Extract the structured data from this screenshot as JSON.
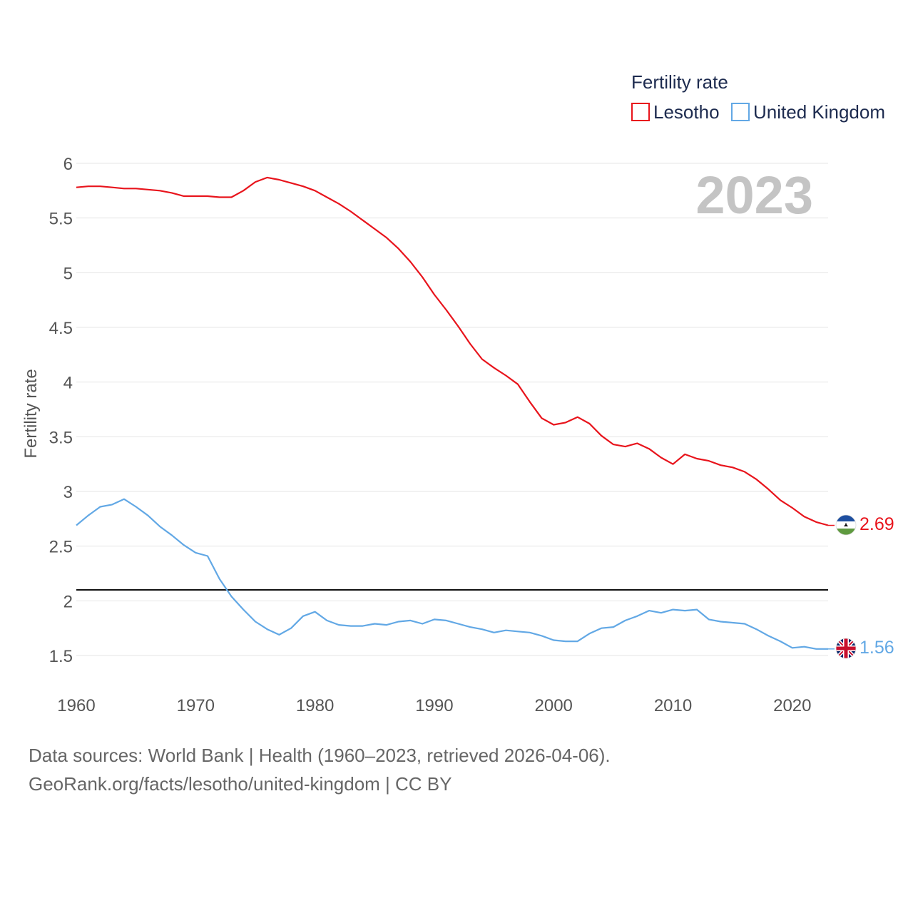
{
  "colors": {
    "lesotho": "#e8141c",
    "uk": "#62a8e5",
    "reference": "#111111",
    "grid": "#e5e5e5"
  },
  "legend": {
    "title": "Fertility rate",
    "items": [
      {
        "name": "Lesotho",
        "color": "#e8141c"
      },
      {
        "name": "United Kingdom",
        "color": "#62a8e5"
      }
    ]
  },
  "year_display": "2023",
  "end_labels": {
    "lesotho": "2.69",
    "uk": "1.56"
  },
  "flags": {
    "lesotho": "lesotho-flag-icon",
    "uk": "uk-flag-icon"
  },
  "footer": {
    "line1": "Data sources: World Bank | Health (1960–2023, retrieved 2026-04-06).",
    "line2": "GeoRank.org/facts/lesotho/united-kingdom | CC BY"
  },
  "chart_data": {
    "type": "line",
    "title": "Fertility rate",
    "xlabel": "",
    "ylabel": "Fertility rate",
    "xlim": [
      1960,
      2023
    ],
    "ylim": [
      1.3,
      6.05
    ],
    "x_ticks": [
      1960,
      1970,
      1980,
      1990,
      2000,
      2010,
      2020
    ],
    "y_ticks": [
      1.5,
      2,
      2.5,
      3,
      3.5,
      4,
      4.5,
      5,
      5.5,
      6
    ],
    "y_tick_labels": [
      "1.5",
      "2",
      "2.5",
      "3",
      "3.5",
      "4",
      "4.5",
      "5",
      "5.5",
      "6"
    ],
    "x_tick_labels": [
      "1960",
      "1970",
      "1980",
      "1990",
      "2000",
      "2010",
      "2020"
    ],
    "reference_line": 2.1,
    "x": [
      1960,
      1961,
      1962,
      1963,
      1964,
      1965,
      1966,
      1967,
      1968,
      1969,
      1970,
      1971,
      1972,
      1973,
      1974,
      1975,
      1976,
      1977,
      1978,
      1979,
      1980,
      1981,
      1982,
      1983,
      1984,
      1985,
      1986,
      1987,
      1988,
      1989,
      1990,
      1991,
      1992,
      1993,
      1994,
      1995,
      1996,
      1997,
      1998,
      1999,
      2000,
      2001,
      2002,
      2003,
      2004,
      2005,
      2006,
      2007,
      2008,
      2009,
      2010,
      2011,
      2012,
      2013,
      2014,
      2015,
      2016,
      2017,
      2018,
      2019,
      2020,
      2021,
      2022,
      2023
    ],
    "series": [
      {
        "name": "Lesotho",
        "values": [
          5.78,
          5.79,
          5.79,
          5.78,
          5.77,
          5.77,
          5.76,
          5.75,
          5.73,
          5.7,
          5.7,
          5.7,
          5.69,
          5.69,
          5.75,
          5.83,
          5.87,
          5.85,
          5.82,
          5.79,
          5.75,
          5.69,
          5.63,
          5.56,
          5.48,
          5.4,
          5.32,
          5.22,
          5.1,
          4.96,
          4.8,
          4.66,
          4.51,
          4.35,
          4.21,
          4.13,
          4.06,
          3.98,
          3.82,
          3.67,
          3.61,
          3.63,
          3.68,
          3.62,
          3.51,
          3.43,
          3.41,
          3.44,
          3.39,
          3.31,
          3.25,
          3.34,
          3.3,
          3.28,
          3.24,
          3.22,
          3.18,
          3.11,
          3.02,
          2.92,
          2.85,
          2.77,
          2.72,
          2.69
        ]
      },
      {
        "name": "United Kingdom",
        "values": [
          2.69,
          2.78,
          2.86,
          2.88,
          2.93,
          2.86,
          2.78,
          2.68,
          2.6,
          2.51,
          2.44,
          2.41,
          2.2,
          2.04,
          1.92,
          1.81,
          1.74,
          1.69,
          1.75,
          1.86,
          1.9,
          1.82,
          1.78,
          1.77,
          1.77,
          1.79,
          1.78,
          1.81,
          1.82,
          1.79,
          1.83,
          1.82,
          1.79,
          1.76,
          1.74,
          1.71,
          1.73,
          1.72,
          1.71,
          1.68,
          1.64,
          1.63,
          1.63,
          1.7,
          1.75,
          1.76,
          1.82,
          1.86,
          1.91,
          1.89,
          1.92,
          1.91,
          1.92,
          1.83,
          1.81,
          1.8,
          1.79,
          1.74,
          1.68,
          1.63,
          1.57,
          1.58,
          1.56,
          1.56
        ]
      }
    ]
  }
}
